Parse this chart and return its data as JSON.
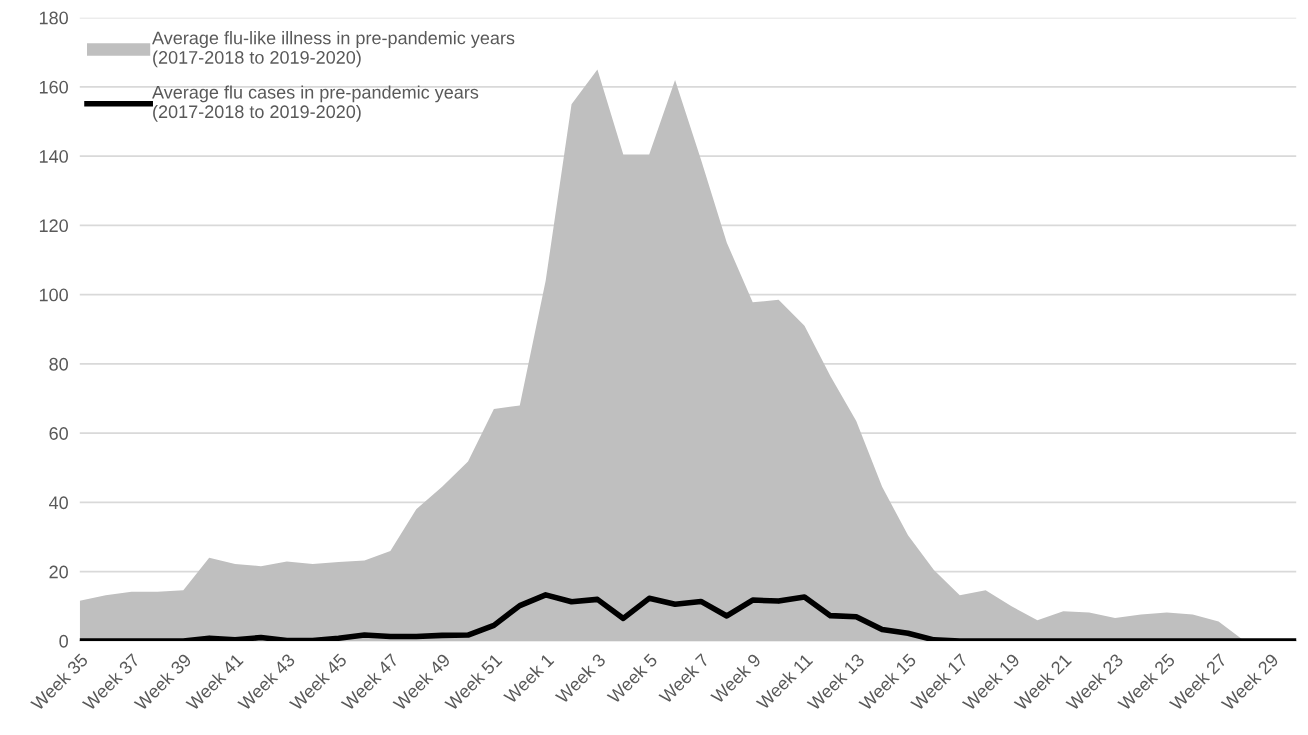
{
  "chart_data": {
    "type": "area",
    "categories": [
      "Week 35",
      null,
      "Week 37",
      null,
      "Week 39",
      null,
      "Week 41",
      null,
      "Week 43",
      null,
      "Week 45",
      null,
      "Week 47",
      null,
      "Week 49",
      null,
      "Week 51",
      null,
      "Week 1",
      null,
      "Week 3",
      null,
      "Week 5",
      null,
      "Week 7",
      null,
      "Week 9",
      null,
      "Week 11",
      null,
      "Week 13",
      null,
      "Week 15",
      null,
      "Week 17",
      null,
      "Week 19",
      null,
      "Week 21",
      null,
      "Week 23",
      null,
      "Week 25",
      null,
      "Week 27",
      null,
      "Week 29",
      null
    ],
    "series": [
      {
        "name": "Average flu-like illness in pre-pandemic years\n(2017-2018 to 2019-2020)",
        "color": "#bfbfbf",
        "values": [
          11.6,
          13.2,
          14.2,
          14.2,
          14.6,
          24,
          22.2,
          21.6,
          22.9,
          22.2,
          22.8,
          23.2,
          26,
          38,
          44.5,
          51.8,
          67,
          68,
          104,
          155,
          165,
          140.5,
          140.5,
          162,
          139,
          115,
          97.8,
          98.5,
          91,
          76.5,
          63.5,
          44.5,
          30.5,
          20.5,
          13.2,
          14.6,
          10,
          6,
          8.6,
          8.2,
          6.6,
          7.6,
          8.2,
          7.6,
          5.6,
          0,
          0,
          0
        ]
      },
      {
        "name": "Average flu cases in pre-pandemic years\n(2017-2018 to 2019-2020)",
        "type": "line",
        "color": "#000000",
        "values": [
          0,
          0,
          0,
          0,
          0,
          0.8,
          0.3,
          1,
          0.1,
          0.1,
          0.8,
          1.7,
          1.3,
          1.3,
          1.6,
          1.7,
          4.5,
          10.2,
          13.3,
          11.3,
          12,
          6.5,
          12.3,
          10.6,
          11.4,
          7.2,
          11.8,
          11.5,
          12.7,
          7.3,
          7,
          3.3,
          2.2,
          0.3,
          0,
          0,
          0,
          0,
          0,
          0,
          0,
          0,
          0,
          0,
          0,
          0,
          0,
          0
        ]
      }
    ],
    "ylim": [
      0,
      180
    ],
    "yticks": [
      0,
      20,
      40,
      60,
      80,
      100,
      120,
      140,
      160,
      180
    ],
    "grid": "y",
    "legend": "top left",
    "marker": "none",
    "line_style": "solid"
  }
}
